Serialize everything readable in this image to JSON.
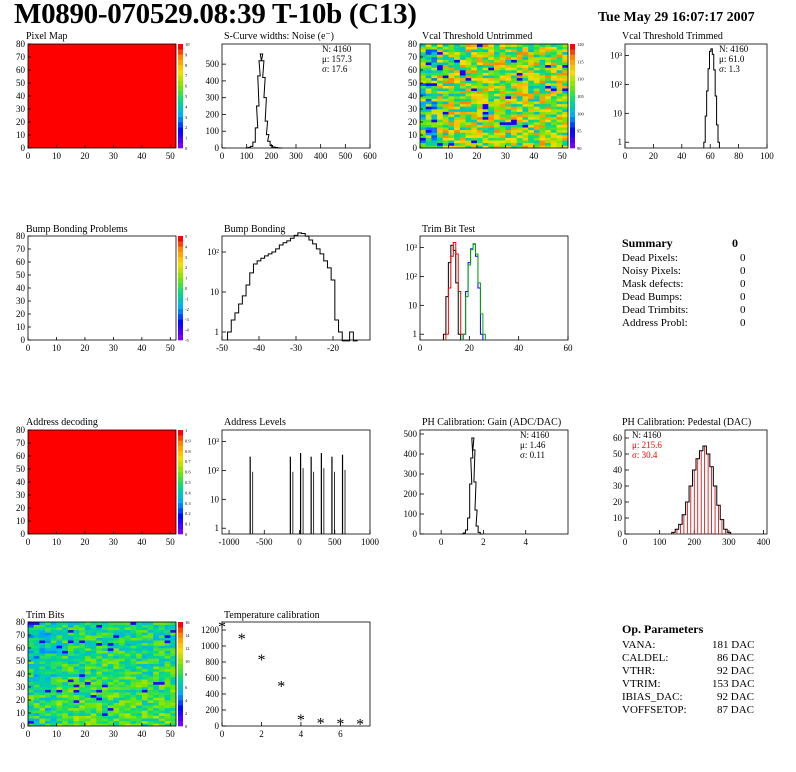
{
  "header": {
    "title": "M0890-070529.08:39 T-10b (C13)",
    "date": "Tue May 29 16:07:17 2007"
  },
  "summary": {
    "title": "Summary",
    "total": "0",
    "rows": [
      {
        "label": "Dead Pixels:",
        "value": "0"
      },
      {
        "label": "Noisy Pixels:",
        "value": "0"
      },
      {
        "label": "Mask defects:",
        "value": "0"
      },
      {
        "label": "Dead Bumps:",
        "value": "0"
      },
      {
        "label": "Dead Trimbits:",
        "value": "0"
      },
      {
        "label": "Address Probl:",
        "value": "0"
      }
    ]
  },
  "op_parameters": {
    "title": "Op. Parameters",
    "rows": [
      {
        "label": "VANA:",
        "value": "181 DAC"
      },
      {
        "label": "CALDEL:",
        "value": "86 DAC"
      },
      {
        "label": "VTHR:",
        "value": "92 DAC"
      },
      {
        "label": "VTRIM:",
        "value": "153 DAC"
      },
      {
        "label": "IBIAS_DAC:",
        "value": "92 DAC"
      },
      {
        "label": "VOFFSETOP:",
        "value": "87 DAC"
      }
    ]
  },
  "chart_data": [
    {
      "id": "pixel_map",
      "type": "heatmap",
      "title": "Pixel Map",
      "xlim": [
        0,
        52
      ],
      "ylim": [
        0,
        80
      ],
      "xticks": [
        "0",
        "10",
        "20",
        "30",
        "40",
        "50"
      ],
      "yticks": [
        "0",
        "10",
        "20",
        "30",
        "40",
        "50",
        "60",
        "70",
        "80"
      ],
      "fill": "uniform",
      "value": 10,
      "zlim": [
        0,
        10
      ],
      "zticks": [
        "0",
        "1",
        "2",
        "3",
        "4",
        "5",
        "6",
        "7",
        "8",
        "9",
        "10"
      ]
    },
    {
      "id": "scurve",
      "type": "line",
      "title": "S-Curve widths: Noise (e⁻)",
      "xlim": [
        0,
        600
      ],
      "ylim": [
        0,
        620
      ],
      "xticks": [
        "0",
        "100",
        "200",
        "300",
        "400",
        "500",
        "600"
      ],
      "yticks": [
        "0",
        "100",
        "200",
        "300",
        "400",
        "500"
      ],
      "stats": [
        {
          "label": "N: 4160"
        },
        {
          "label": "μ: 157.3"
        },
        {
          "label": "σ: 17.6"
        }
      ],
      "x": [
        100,
        110,
        120,
        130,
        140,
        145,
        150,
        155,
        160,
        165,
        170,
        175,
        180,
        185,
        190,
        200,
        210,
        220,
        230,
        240
      ],
      "y": [
        0,
        4,
        10,
        35,
        120,
        250,
        430,
        520,
        560,
        520,
        420,
        300,
        160,
        80,
        40,
        15,
        6,
        3,
        1,
        0
      ]
    },
    {
      "id": "vcal_untrimmed",
      "type": "heatmap",
      "title": "Vcal Threshold Untrimmed",
      "xlim": [
        0,
        52
      ],
      "ylim": [
        0,
        80
      ],
      "xticks": [
        "0",
        "10",
        "20",
        "30",
        "40",
        "50"
      ],
      "yticks": [
        "0",
        "10",
        "20",
        "30",
        "40",
        "50",
        "60",
        "70",
        "80"
      ],
      "fill": "noise",
      "zlim": [
        90,
        120
      ],
      "zticks": [
        "90",
        "95",
        "100",
        "105",
        "110",
        "115",
        "120"
      ]
    },
    {
      "id": "vcal_trimmed",
      "type": "line",
      "title": "Vcal Threshold Trimmed",
      "xlim": [
        0,
        100
      ],
      "log_y": true,
      "xticks": [
        "0",
        "20",
        "40",
        "60",
        "80",
        "100"
      ],
      "yticks": [
        "1",
        "10",
        "10²",
        "10³"
      ],
      "stats": [
        {
          "label": "N: 4160"
        },
        {
          "label": "μ: 61.0"
        },
        {
          "label": "σ:  1.3"
        }
      ],
      "x": [
        56,
        57,
        58,
        59,
        60,
        61,
        62,
        63,
        64,
        65,
        66
      ],
      "y": [
        1,
        8,
        60,
        350,
        1400,
        1700,
        1100,
        320,
        40,
        4,
        1
      ]
    },
    {
      "id": "bump_problems",
      "type": "heatmap",
      "title": "Bump Bonding Problems",
      "xlim": [
        0,
        52
      ],
      "ylim": [
        0,
        80
      ],
      "xticks": [
        "0",
        "10",
        "20",
        "30",
        "40",
        "50"
      ],
      "yticks": [
        "0",
        "10",
        "20",
        "30",
        "40",
        "50",
        "60",
        "70",
        "80"
      ],
      "fill": "empty",
      "zlim": [
        -5,
        5
      ],
      "zticks": [
        "-5",
        "-4",
        "-3",
        "-2",
        "-1",
        "0",
        "1",
        "2",
        "3",
        "4",
        "5"
      ]
    },
    {
      "id": "bump_bonding",
      "type": "line",
      "title": "Bump Bonding",
      "xlim": [
        -50,
        -10
      ],
      "log_y": true,
      "xticks": [
        "-50",
        "-40",
        "-30",
        "-20"
      ],
      "yticks": [
        "1",
        "10",
        "10²"
      ],
      "x": [
        -48,
        -47,
        -46,
        -45,
        -44,
        -43,
        -42,
        -41,
        -40,
        -39,
        -38,
        -37,
        -36,
        -35,
        -34,
        -33,
        -32,
        -31,
        -30,
        -29,
        -28,
        -27,
        -26,
        -25,
        -24,
        -23,
        -22,
        -21,
        -20,
        -19,
        -18,
        -17,
        -16,
        -15,
        -14
      ],
      "y": [
        1,
        2,
        3,
        5,
        8,
        15,
        30,
        50,
        60,
        70,
        80,
        90,
        100,
        120,
        150,
        170,
        190,
        220,
        260,
        300,
        290,
        250,
        200,
        160,
        120,
        90,
        60,
        40,
        20,
        2,
        1,
        0,
        0,
        1,
        0
      ]
    },
    {
      "id": "trim_bit_test",
      "type": "line",
      "title": "Trim Bit Test",
      "xlim": [
        0,
        60
      ],
      "log_y": true,
      "xticks": [
        "0",
        "20",
        "40",
        "60"
      ],
      "yticks": [
        "1",
        "10",
        "10²",
        "10³"
      ],
      "series": [
        {
          "color": "#000000",
          "x": [
            10,
            11,
            12,
            13,
            14,
            15,
            16
          ],
          "y": [
            1,
            20,
            300,
            1200,
            800,
            60,
            1
          ]
        },
        {
          "color": "#ff0000",
          "x": [
            11,
            12,
            13,
            14,
            15,
            16,
            17
          ],
          "y": [
            1,
            40,
            500,
            1500,
            600,
            30,
            1
          ]
        },
        {
          "color": "#0000ff",
          "x": [
            18,
            19,
            20,
            21,
            22,
            23,
            24,
            25
          ],
          "y": [
            1,
            30,
            300,
            900,
            1300,
            500,
            40,
            1
          ]
        },
        {
          "color": "#00aa00",
          "x": [
            18,
            19,
            20,
            21,
            22,
            23,
            24,
            25,
            26
          ],
          "y": [
            1,
            20,
            250,
            850,
            1350,
            600,
            60,
            5,
            1
          ]
        }
      ]
    },
    {
      "id": "address_decoding",
      "type": "heatmap",
      "title": "Address decoding",
      "xlim": [
        0,
        52
      ],
      "ylim": [
        0,
        80
      ],
      "xticks": [
        "0",
        "10",
        "20",
        "30",
        "40",
        "50"
      ],
      "yticks": [
        "0",
        "10",
        "20",
        "30",
        "40",
        "50",
        "60",
        "70",
        "80"
      ],
      "fill": "uniform",
      "value": 1,
      "zlim": [
        0,
        1
      ],
      "zticks": [
        "0",
        "0.1",
        "0.2",
        "0.3",
        "0.4",
        "0.5",
        "0.6",
        "0.7",
        "0.8",
        "0.9",
        "1"
      ]
    },
    {
      "id": "address_levels",
      "type": "bar",
      "title": "Address Levels",
      "xlim": [
        -1100,
        1000
      ],
      "log_y": true,
      "xticks": [
        "-1000",
        "-500",
        "0",
        "500",
        "1000"
      ],
      "yticks": [
        "1",
        "10",
        "10²",
        "10³"
      ],
      "peaks": [
        {
          "x": -700,
          "y": 300
        },
        {
          "x": -130,
          "y": 300
        },
        {
          "x": 15,
          "y": 400
        },
        {
          "x": 165,
          "y": 300
        },
        {
          "x": 310,
          "y": 400
        },
        {
          "x": 460,
          "y": 300
        },
        {
          "x": 610,
          "y": 350
        }
      ]
    },
    {
      "id": "ph_gain",
      "type": "line",
      "title": "PH Calibration: Gain (ADC/DAC)",
      "xlim": [
        -1,
        6
      ],
      "ylim": [
        0,
        520
      ],
      "xticks": [
        "0",
        "2",
        "4"
      ],
      "yticks": [
        "0",
        "100",
        "200",
        "300",
        "400",
        "500"
      ],
      "stats": [
        {
          "label": "N: 4160"
        },
        {
          "label": "μ: 1.46"
        },
        {
          "label": "σ: 0.11"
        }
      ],
      "x": [
        1.0,
        1.1,
        1.2,
        1.3,
        1.4,
        1.45,
        1.5,
        1.55,
        1.6,
        1.65,
        1.7,
        1.8,
        1.9
      ],
      "y": [
        0,
        5,
        20,
        80,
        250,
        380,
        480,
        420,
        260,
        120,
        40,
        8,
        0
      ]
    },
    {
      "id": "ph_pedestal",
      "type": "line",
      "title": "PH Calibration: Pedestal (DAC)",
      "xlim": [
        0,
        410
      ],
      "ylim": [
        0,
        65
      ],
      "xticks": [
        "0",
        "100",
        "200",
        "300",
        "400"
      ],
      "yticks": [
        "0",
        "10",
        "20",
        "30",
        "40",
        "50",
        "60"
      ],
      "stats": [
        {
          "label": "N: 4160"
        },
        {
          "label": "μ: 215.6"
        },
        {
          "label": "σ: 30.4"
        }
      ],
      "x": [
        140,
        150,
        160,
        170,
        180,
        190,
        200,
        210,
        220,
        230,
        240,
        250,
        260,
        270,
        280,
        290,
        300
      ],
      "y": [
        1,
        3,
        6,
        12,
        20,
        30,
        40,
        47,
        52,
        55,
        50,
        42,
        30,
        18,
        9,
        3,
        1
      ]
    },
    {
      "id": "trim_bits",
      "type": "heatmap",
      "title": "Trim Bits",
      "xlim": [
        0,
        52
      ],
      "ylim": [
        0,
        80
      ],
      "xticks": [
        "0",
        "10",
        "20",
        "30",
        "40",
        "50"
      ],
      "yticks": [
        "0",
        "10",
        "20",
        "30",
        "40",
        "50",
        "60",
        "70",
        "80"
      ],
      "fill": "noise2",
      "zlim": [
        0,
        16
      ],
      "zticks": [
        "0",
        "2",
        "4",
        "6",
        "8",
        "10",
        "12",
        "14",
        "16"
      ]
    },
    {
      "id": "temperature",
      "type": "scatter",
      "title": "Temperature calibration",
      "xlim": [
        0,
        7.5
      ],
      "ylim": [
        0,
        1300
      ],
      "xticks": [
        "0",
        "2",
        "4",
        "6"
      ],
      "yticks": [
        "0",
        "200",
        "400",
        "600",
        "800",
        "1000",
        "1200"
      ],
      "x": [
        0,
        1,
        2,
        3,
        4,
        5,
        6,
        7
      ],
      "y": [
        1225,
        1075,
        815,
        480,
        60,
        20,
        10,
        5
      ]
    }
  ]
}
